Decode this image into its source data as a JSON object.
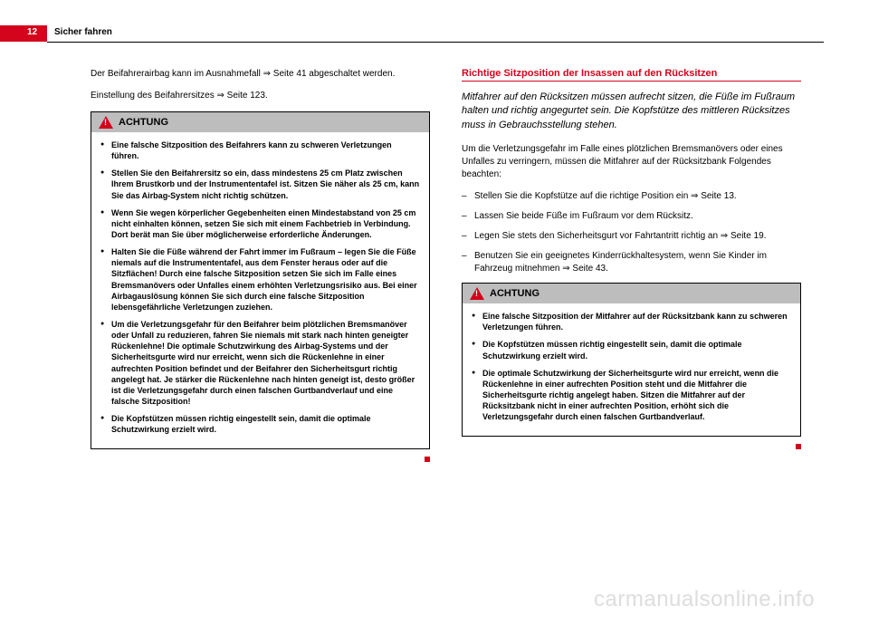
{
  "header": {
    "page_number": "12",
    "title": "Sicher fahren"
  },
  "left": {
    "intro_line1": "Der Beifahrerairbag kann im Ausnahmefall ⇒ Seite 41 abgeschaltet werden.",
    "intro_line2": "Einstellung des Beifahrersitzes ⇒ Seite 123.",
    "achtung_title": "ACHTUNG",
    "bullets": [
      "Eine falsche Sitzposition des Beifahrers kann zu schweren Verletzungen führen.",
      "Stellen Sie den Beifahrersitz so ein, dass mindestens 25 cm Platz zwischen Ihrem Brustkorb und der Instrumententafel ist. Sitzen Sie näher als 25 cm, kann Sie das Airbag-System nicht richtig schützen.",
      "Wenn Sie wegen körperlicher Gegebenheiten einen Mindestabstand von 25 cm nicht einhalten können, setzen Sie sich mit einem Fachbetrieb in Verbindung. Dort berät man Sie über möglicherweise erforderliche Änderungen.",
      "Halten Sie die Füße während der Fahrt immer im Fußraum – legen Sie die Füße niemals auf die Instrumententafel, aus dem Fenster heraus oder auf die Sitzflächen! Durch eine falsche Sitzposition setzen Sie sich im Falle eines Bremsmanövers oder Unfalles einem erhöhten Verletzungsrisiko aus. Bei einer Airbagauslösung können Sie sich durch eine falsche Sitzposition lebensgefährliche Verletzungen zuziehen.",
      "Um die Verletzungsgefahr für den Beifahrer beim plötzlichen Bremsmanöver oder Unfall zu reduzieren, fahren Sie niemals mit stark nach hinten geneigter Rückenlehne! Die optimale Schutzwirkung des Airbag-Systems und der Sicherheitsgurte wird nur erreicht, wenn sich die Rückenlehne in einer aufrechten Position befindet und der Beifahrer den Sicherheitsgurt richtig angelegt hat. Je stärker die Rückenlehne nach hinten geneigt ist, desto größer ist die Verletzungsgefahr durch einen falschen Gurtbandverlauf und eine falsche Sitzposition!",
      "Die Kopfstützen müssen richtig eingestellt sein, damit die optimale Schutzwirkung erzielt wird."
    ]
  },
  "right": {
    "heading": "Richtige Sitzposition der Insassen auf den Rücksitzen",
    "italic_intro": "Mitfahrer auf den Rücksitzen müssen aufrecht sitzen, die Füße im Fußraum halten und richtig angegurtet sein. Die Kopfstütze des mittleren Rücksitzes muss in Gebrauchsstellung stehen.",
    "body_para": "Um die Verletzungsgefahr im Falle eines plötzlichen Bremsmanövers oder eines Unfalles zu verringern, müssen die Mitfahrer auf der Rücksitzbank Folgendes beachten:",
    "list_items": [
      "Stellen Sie die Kopfstütze auf die richtige Position ein ⇒ Seite 13.",
      "Lassen Sie beide Füße im Fußraum vor dem Rücksitz.",
      "Legen Sie stets den Sicherheitsgurt vor Fahrtantritt richtig an ⇒ Seite 19.",
      "Benutzen Sie ein geeignetes Kinderrückhaltesystem, wenn Sie Kinder im Fahrzeug mitnehmen ⇒ Seite 43."
    ],
    "achtung_title": "ACHTUNG",
    "bullets": [
      "Eine falsche Sitzposition der Mitfahrer auf der Rücksitzbank kann zu schweren Verletzungen führen.",
      "Die Kopfstützen müssen richtig eingestellt sein, damit die optimale Schutzwirkung erzielt wird.",
      "Die optimale Schutzwirkung der Sicherheitsgurte wird nur erreicht, wenn die Rückenlehne in einer aufrechten Position steht und die Mitfahrer die Sicherheitsgurte richtig angelegt haben. Sitzen die Mitfahrer auf der Rücksitzbank nicht in einer aufrechten Position, erhöht sich die Verletzungsgefahr durch einen falschen Gurtbandverlauf."
    ]
  },
  "watermark": "carmanualsonline.info",
  "colors": {
    "red": "#d3041b",
    "grey": "#bdbdbd",
    "watermark": "#dddddd"
  }
}
